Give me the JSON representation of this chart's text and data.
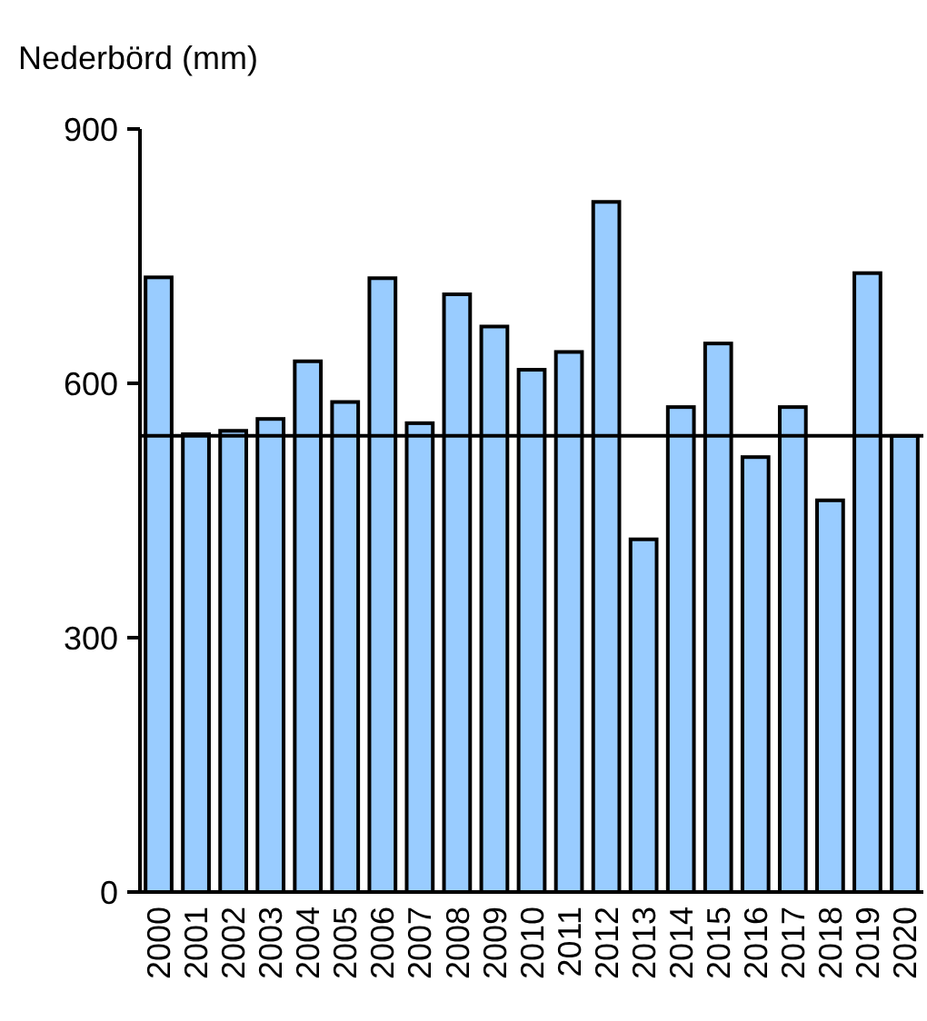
{
  "chart_data": {
    "type": "bar",
    "ylabel": "Nederbörd (mm)",
    "categories": [
      "2000",
      "2001",
      "2002",
      "2003",
      "2004",
      "2005",
      "2006",
      "2007",
      "2008",
      "2009",
      "2010",
      "2011",
      "2012",
      "2013",
      "2014",
      "2015",
      "2016",
      "2017",
      "2018",
      "2019",
      "2020"
    ],
    "values": [
      725,
      540,
      544,
      558,
      626,
      578,
      724,
      553,
      705,
      667,
      616,
      637,
      814,
      416,
      572,
      647,
      513,
      572,
      462,
      730,
      538
    ],
    "color": "#99ccff",
    "ylim": [
      0,
      900
    ],
    "yticks": [
      0,
      300,
      600,
      900
    ],
    "ref_lines": [
      {
        "axis": "y",
        "value": 538,
        "color": "#000000"
      }
    ],
    "grid": false
  }
}
